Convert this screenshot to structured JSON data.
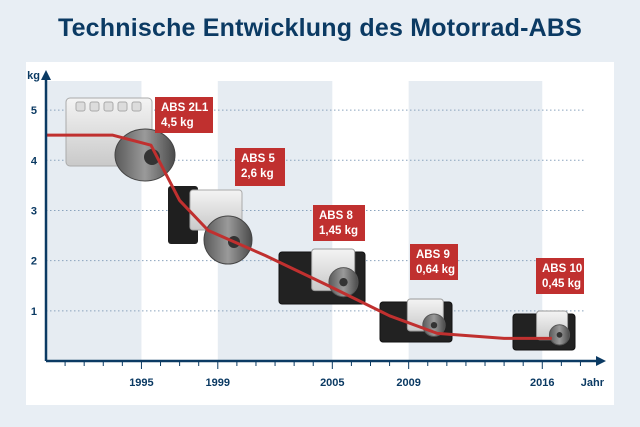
{
  "header": {
    "title": "Technische Entwicklung des Motorrad-ABS"
  },
  "chart_data": {
    "type": "line",
    "title": "Technische Entwicklung des Motorrad-ABS",
    "xlabel": "Jahr",
    "ylabel": "kg",
    "xlim": [
      1990,
      2018.5
    ],
    "ylim": [
      0,
      5.5
    ],
    "x_ticks": [
      1995,
      1999,
      2005,
      2009,
      2016
    ],
    "y_ticks": [
      1,
      2,
      3,
      4,
      5
    ],
    "grid": "horizontal dotted",
    "series": [
      {
        "points": [
          {
            "x": 1988.0,
            "y": 4.5
          },
          {
            "x": 1993.5,
            "y": 4.5
          },
          {
            "x": 1995.5,
            "y": 4.3
          },
          {
            "x": 1997.0,
            "y": 3.2
          },
          {
            "x": 1998.5,
            "y": 2.6
          },
          {
            "x": 2001.5,
            "y": 2.1
          },
          {
            "x": 2004.8,
            "y": 1.5
          },
          {
            "x": 2008.0,
            "y": 0.9
          },
          {
            "x": 2010.5,
            "y": 0.55
          },
          {
            "x": 2014.0,
            "y": 0.45
          },
          {
            "x": 2016.5,
            "y": 0.45
          }
        ]
      }
    ],
    "annotations": [
      {
        "name": "ABS 2L1",
        "weight": "4,5 kg",
        "x": 1995
      },
      {
        "name": "ABS 5",
        "weight": "2,6 kg",
        "x": 1999
      },
      {
        "name": "ABS 8",
        "weight": "1,45 kg",
        "x": 2005
      },
      {
        "name": "ABS 9",
        "weight": "0,64 kg",
        "x": 2009
      },
      {
        "name": "ABS 10",
        "weight": "0,45 kg",
        "x": 2016
      }
    ]
  },
  "colors": {
    "navy": "#0b3a63",
    "red": "#c0302f",
    "band": "#e6ecf2",
    "grid": "#8aa3bd"
  }
}
